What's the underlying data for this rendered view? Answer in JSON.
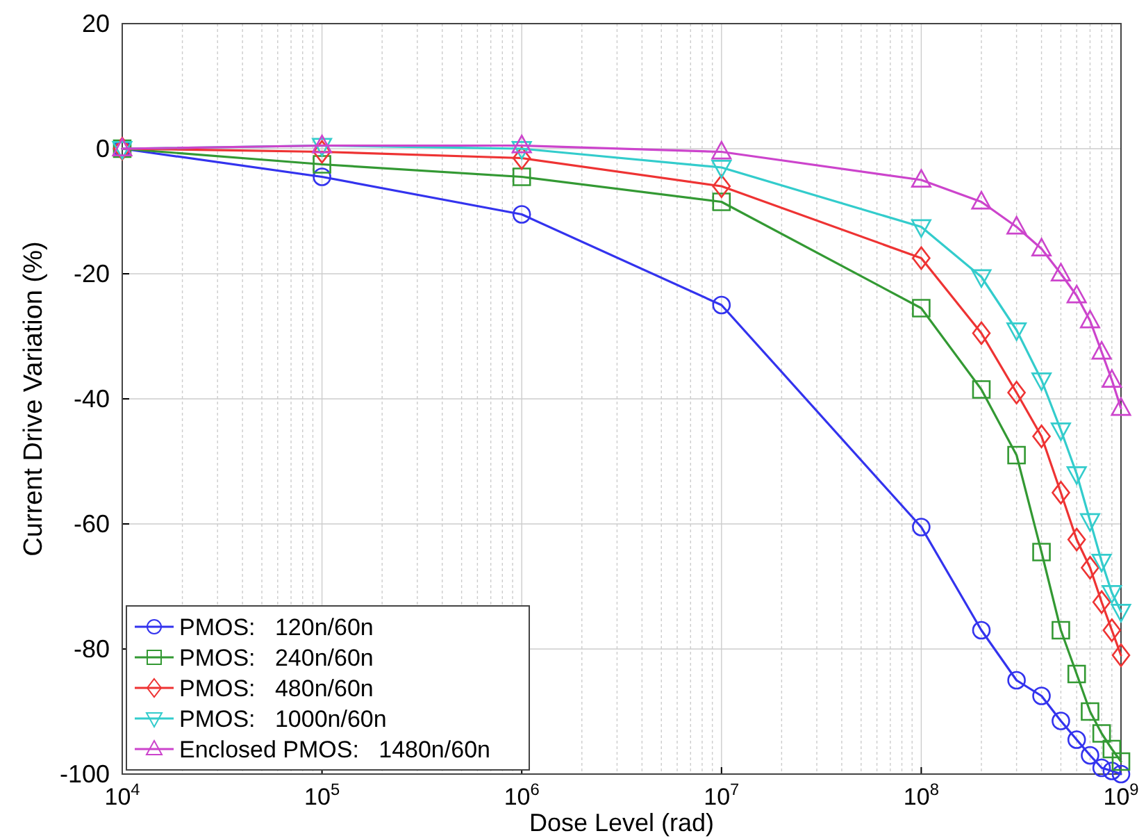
{
  "chart_data": {
    "type": "line",
    "xlabel": "Dose Level (rad)",
    "ylabel": "Current Drive Variation  (%)",
    "x": [
      10000,
      100000,
      1000000,
      10000000,
      100000000,
      200000000,
      300000000,
      400000000,
      500000000,
      600000000,
      700000000,
      800000000,
      900000000,
      1000000000
    ],
    "log": "x",
    "xlim": [
      10000,
      1000000000
    ],
    "ylim": [
      -100,
      20
    ],
    "xticks": [
      {
        "value": 10000,
        "label": "10$^{4}$"
      },
      {
        "value": 100000,
        "label": "10$^{5}$"
      },
      {
        "value": 1000000,
        "label": "10$^{6}$"
      },
      {
        "value": 10000000,
        "label": "10$^{7}$"
      },
      {
        "value": 100000000,
        "label": "10$^{8}$"
      },
      {
        "value": 1000000000,
        "label": "10$^{9}$"
      }
    ],
    "yticks": [
      -100,
      -80,
      -60,
      -40,
      -20,
      0,
      20
    ],
    "grid": true,
    "legend": "bottom left",
    "line_style": "solid",
    "series": [
      {
        "name": "PMOS:   120n/60n",
        "color": "#3333ee",
        "marker": "circle",
        "values": [
          0,
          -4.5,
          -10.5,
          -25,
          -60.5,
          -77,
          -85,
          -87.5,
          -91.5,
          -94.5,
          -97,
          -99,
          -99.5,
          -100
        ]
      },
      {
        "name": "PMOS:   240n/60n",
        "color": "#339933",
        "marker": "square",
        "values": [
          0,
          -2.5,
          -4.5,
          -8.5,
          -25.5,
          -38.5,
          -49,
          -64.5,
          -77,
          -84,
          -90,
          -93.5,
          -96,
          -98
        ]
      },
      {
        "name": "PMOS:   480n/60n",
        "color": "#ee3333",
        "marker": "diamond",
        "values": [
          0,
          -0.5,
          -1.5,
          -6,
          -17.5,
          -29.5,
          -39,
          -46,
          -55,
          -62.5,
          -67,
          -72.5,
          -77,
          -81
        ]
      },
      {
        "name": "PMOS:   1000n/60n",
        "color": "#33cccc",
        "marker": "triangle-down",
        "values": [
          0,
          0.5,
          0,
          -3,
          -12.5,
          -20.5,
          -29,
          -37,
          -45,
          -52,
          -59.5,
          -66,
          -71,
          -74
        ]
      },
      {
        "name": "Enclosed PMOS:   1480n/60n",
        "color": "#cc44cc",
        "marker": "triangle",
        "values": [
          0,
          0.5,
          0.5,
          -0.5,
          -5,
          -8.5,
          -12.5,
          -16,
          -20,
          -23.5,
          -27.5,
          -32.5,
          -37,
          -41.5
        ]
      }
    ]
  }
}
